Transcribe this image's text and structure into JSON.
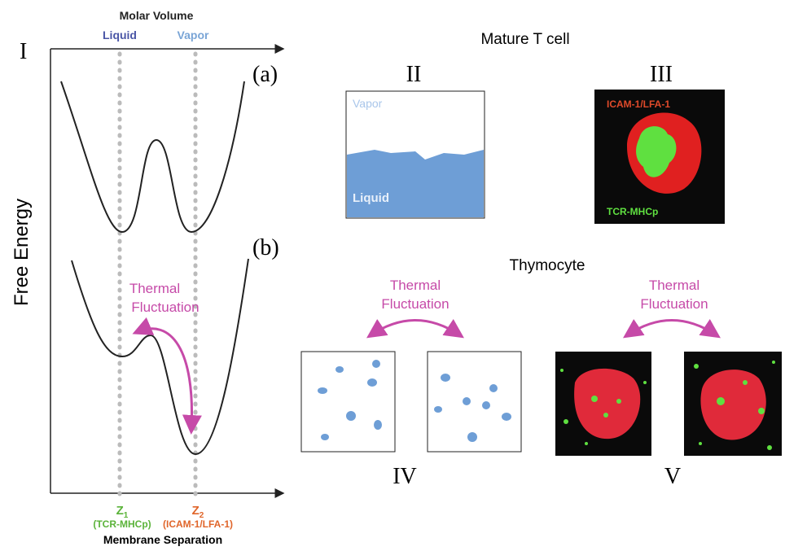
{
  "panel_i": {
    "label": "I",
    "top_axis_title": "Molar Volume",
    "top_labels": [
      "Liquid",
      "Vapor"
    ],
    "curve_labels": [
      "(a)",
      "(b)"
    ],
    "y_axis_title": "Free Energy",
    "annotation": [
      "Thermal",
      "Fluctuation"
    ],
    "bottom_labels": [
      {
        "symbol": "Z",
        "subscript": "1",
        "label": "(TCR-MHCp)"
      },
      {
        "symbol": "Z",
        "subscript": "2",
        "label": "(ICAM-1/LFA-1)"
      }
    ],
    "x_axis_title": "Membrane Separation"
  },
  "mature_title": "Mature T cell",
  "panel_ii": {
    "label": "II",
    "top": "Vapor",
    "bottom": "Liquid"
  },
  "panel_iii": {
    "label": "III",
    "top": "ICAM-1/LFA-1",
    "bottom": "TCR-MHCp"
  },
  "thymocyte_title": "Thymocyte",
  "panel_iv": {
    "label": "IV",
    "annotation": [
      "Thermal",
      "Fluctuation"
    ]
  },
  "panel_v": {
    "label": "V",
    "annotation": [
      "Thermal",
      "Fluctuation"
    ]
  }
}
